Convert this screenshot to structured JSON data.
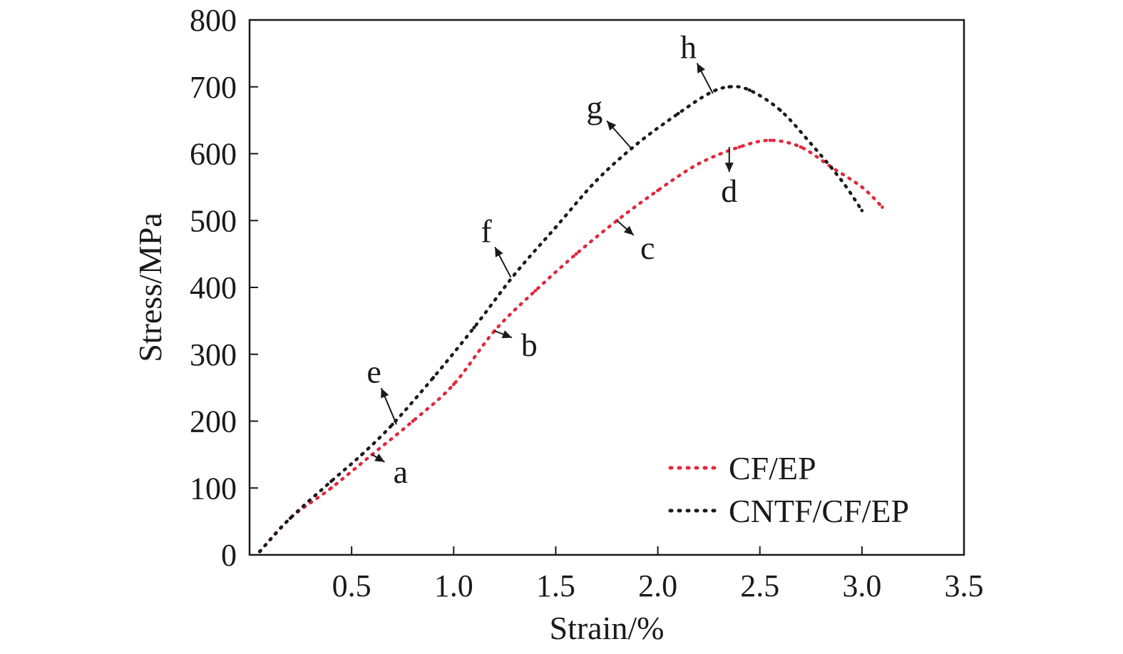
{
  "chart_data": {
    "type": "scatter",
    "xlabel": "Strain/%",
    "ylabel": "Stress/MPa",
    "xlim": [
      0,
      3.5
    ],
    "ylim": [
      0,
      800
    ],
    "x_ticks": [
      {
        "value": 0.5,
        "label": "0.5"
      },
      {
        "value": 1.0,
        "label": "1.0"
      },
      {
        "value": 1.5,
        "label": "1.5"
      },
      {
        "value": 2.0,
        "label": "2.0"
      },
      {
        "value": 2.5,
        "label": "2.5"
      },
      {
        "value": 3.0,
        "label": "3.0"
      },
      {
        "value": 3.5,
        "label": "3.5"
      }
    ],
    "y_ticks": [
      {
        "value": 0,
        "label": "0"
      },
      {
        "value": 100,
        "label": "100"
      },
      {
        "value": 200,
        "label": "200"
      },
      {
        "value": 300,
        "label": "300"
      },
      {
        "value": 400,
        "label": "400"
      },
      {
        "value": 500,
        "label": "500"
      },
      {
        "value": 600,
        "label": "600"
      },
      {
        "value": 700,
        "label": "700"
      },
      {
        "value": 800,
        "label": "800"
      }
    ],
    "grid": false,
    "legend_position": "bottom-right",
    "series": [
      {
        "name": "CF/EP",
        "color": "#e0283c",
        "points": [
          [
            0.05,
            5
          ],
          [
            0.2,
            55
          ],
          [
            0.4,
            100
          ],
          [
            0.6,
            150
          ],
          [
            0.8,
            200
          ],
          [
            1.0,
            255
          ],
          [
            1.2,
            335
          ],
          [
            1.4,
            395
          ],
          [
            1.6,
            450
          ],
          [
            1.8,
            500
          ],
          [
            2.0,
            545
          ],
          [
            2.2,
            585
          ],
          [
            2.4,
            610
          ],
          [
            2.55,
            620
          ],
          [
            2.7,
            610
          ],
          [
            2.85,
            580
          ],
          [
            3.0,
            550
          ],
          [
            3.1,
            520
          ]
        ]
      },
      {
        "name": "CNTF/CF/EP",
        "color": "#1a1a1a",
        "points": [
          [
            0.05,
            5
          ],
          [
            0.2,
            55
          ],
          [
            0.4,
            110
          ],
          [
            0.55,
            150
          ],
          [
            0.7,
            195
          ],
          [
            0.9,
            265
          ],
          [
            1.1,
            340
          ],
          [
            1.3,
            420
          ],
          [
            1.5,
            490
          ],
          [
            1.7,
            560
          ],
          [
            1.9,
            615
          ],
          [
            2.1,
            660
          ],
          [
            2.25,
            690
          ],
          [
            2.35,
            700
          ],
          [
            2.45,
            695
          ],
          [
            2.6,
            665
          ],
          [
            2.75,
            615
          ],
          [
            2.9,
            560
          ],
          [
            3.0,
            515
          ]
        ]
      }
    ],
    "annotations": [
      {
        "label": "a",
        "point": [
          0.6,
          150
        ],
        "text_at": [
          0.74,
          110
        ]
      },
      {
        "label": "b",
        "point": [
          1.2,
          335
        ],
        "text_at": [
          1.37,
          300
        ]
      },
      {
        "label": "c",
        "point": [
          1.8,
          500
        ],
        "text_at": [
          1.95,
          445
        ]
      },
      {
        "label": "d",
        "point": [
          2.35,
          610
        ],
        "text_at": [
          2.35,
          530
        ]
      },
      {
        "label": "e",
        "point": [
          0.72,
          195
        ],
        "text_at": [
          0.61,
          260
        ]
      },
      {
        "label": "f",
        "point": [
          1.28,
          415
        ],
        "text_at": [
          1.16,
          470
        ]
      },
      {
        "label": "g",
        "point": [
          1.87,
          608
        ],
        "text_at": [
          1.69,
          655
        ]
      },
      {
        "label": "h",
        "point": [
          2.27,
          690
        ],
        "text_at": [
          2.15,
          745
        ]
      }
    ]
  }
}
